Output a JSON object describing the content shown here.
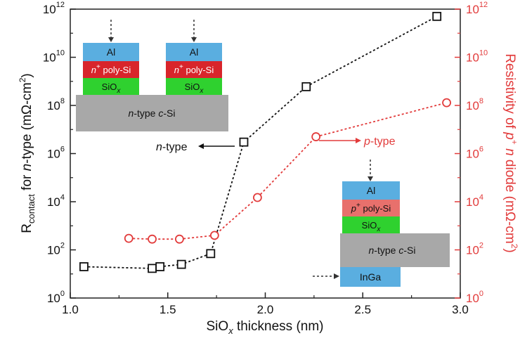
{
  "chart_data": {
    "type": "scatter",
    "xlabel_main": "SiO",
    "xlabel_sub": "x",
    "xlabel_rest": " thickness (nm)",
    "ylabel_left_main": "R",
    "ylabel_left_sub": "contact",
    "ylabel_left_rest": " for ",
    "ylabel_left_italic": "n",
    "ylabel_left_tail": "-type (mΩ-cm",
    "ylabel_left_sup": "2",
    "ylabel_left_end": ")",
    "ylabel_right_a": "Resistivity of ",
    "ylabel_right_p": "p",
    "ylabel_right_plus": "+",
    "ylabel_right_n": " n",
    "ylabel_right_b": " diode (mΩ-cm",
    "ylabel_right_sup": "2",
    "ylabel_right_end": ")",
    "xlim": [
      1.0,
      3.0
    ],
    "ylim_log10": [
      0,
      12
    ],
    "x_ticks": [
      {
        "value": 1.0,
        "label": "1.0"
      },
      {
        "value": 1.5,
        "label": "1.5"
      },
      {
        "value": 2.0,
        "label": "2.0"
      },
      {
        "value": 2.5,
        "label": "2.5"
      },
      {
        "value": 3.0,
        "label": "3.0"
      }
    ],
    "y_ticks": [
      {
        "exp": 0,
        "base": "10",
        "sup": "0"
      },
      {
        "exp": 2,
        "base": "10",
        "sup": "2"
      },
      {
        "exp": 4,
        "base": "10",
        "sup": "4"
      },
      {
        "exp": 6,
        "base": "10",
        "sup": "6"
      },
      {
        "exp": 8,
        "base": "10",
        "sup": "8"
      },
      {
        "exp": 10,
        "base": "10",
        "sup": "10"
      },
      {
        "exp": 12,
        "base": "10",
        "sup": "12"
      }
    ],
    "series": [
      {
        "name": "n-type",
        "marker": "square",
        "color": "#111111",
        "axis": "left",
        "points": [
          {
            "x": 1.07,
            "y": 20
          },
          {
            "x": 1.42,
            "y": 17
          },
          {
            "x": 1.46,
            "y": 20
          },
          {
            "x": 1.57,
            "y": 25
          },
          {
            "x": 1.72,
            "y": 70
          },
          {
            "x": 1.89,
            "y": 3000000
          },
          {
            "x": 2.21,
            "y": 600000000
          },
          {
            "x": 2.88,
            "y": 500000000000
          }
        ]
      },
      {
        "name": "p-type",
        "marker": "circle",
        "color": "#e23b3b",
        "axis": "right",
        "points": [
          {
            "x": 1.3,
            "y": 300
          },
          {
            "x": 1.42,
            "y": 280
          },
          {
            "x": 1.56,
            "y": 280
          },
          {
            "x": 1.74,
            "y": 400
          },
          {
            "x": 1.96,
            "y": 15000
          },
          {
            "x": 2.26,
            "y": 5000000
          },
          {
            "x": 2.93,
            "y": 130000000
          }
        ]
      }
    ],
    "annotations": {
      "ntype_label_italic": "n",
      "ntype_label_rest": "-type",
      "ptype_label_italic": "p",
      "ptype_label_rest": "-type"
    },
    "colors": {
      "left_axis": "#111111",
      "right_axis": "#e23b3b",
      "al": "#5aaee0",
      "npoly": "#d8252b",
      "ppoly": "#e8706c",
      "sio": "#2fd12f",
      "csi": "#a8a8a8",
      "inga": "#5aaee0"
    }
  },
  "insets": {
    "top_left": {
      "al": "Al",
      "poly_prefix": "n",
      "poly_sup": "+",
      "poly_rest": " poly-Si",
      "sio_main": "SiO",
      "sio_sub": "x",
      "substrate_italic": "n",
      "substrate_mid": "-type ",
      "substrate_c": "c",
      "substrate_rest": "-Si"
    },
    "bottom_right": {
      "al": "Al",
      "poly_prefix": "p",
      "poly_sup": "+",
      "poly_rest": " poly-Si",
      "sio_main": "SiO",
      "sio_sub": "x",
      "substrate_italic": "n",
      "substrate_mid": "-type ",
      "substrate_c": "c",
      "substrate_rest": "-Si",
      "inga": "InGa"
    }
  }
}
